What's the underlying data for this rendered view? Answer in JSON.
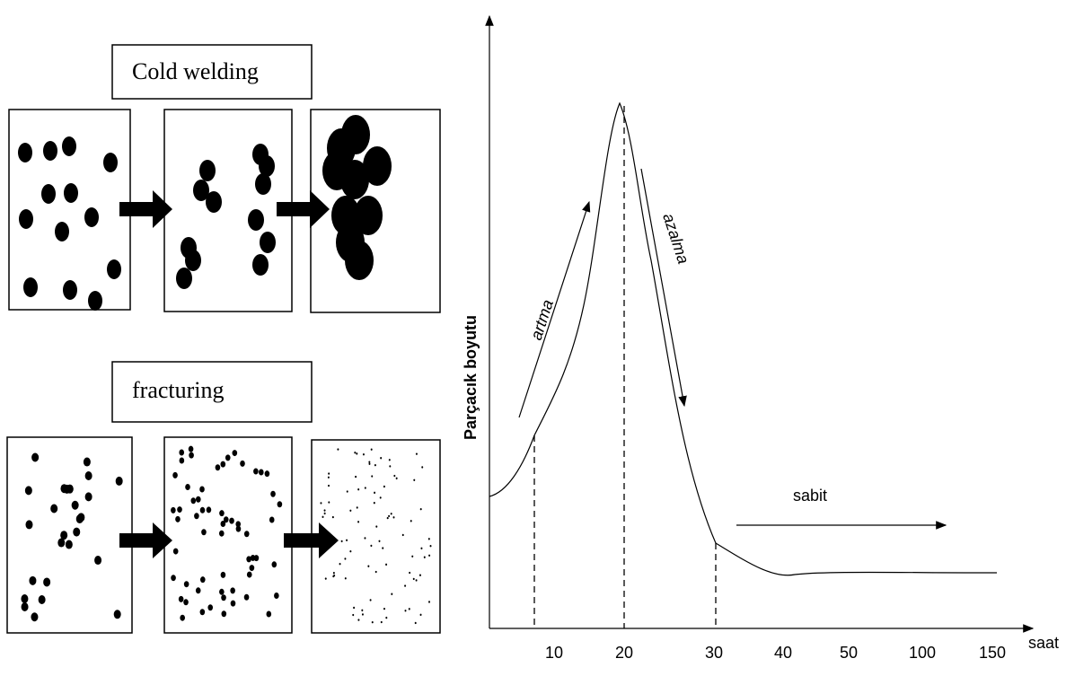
{
  "left": {
    "cold_welding_label": "Cold welding",
    "fracturing_label": "fracturing"
  },
  "graph": {
    "y_axis_label": "Parçacık boyutu",
    "x_axis_label": "saat",
    "x_tick_labels": [
      "10",
      "20",
      "30",
      "40",
      "50",
      "100",
      "150"
    ],
    "annotations": {
      "increase": "artma",
      "decrease": "azalma",
      "constant": "sabit"
    }
  }
}
